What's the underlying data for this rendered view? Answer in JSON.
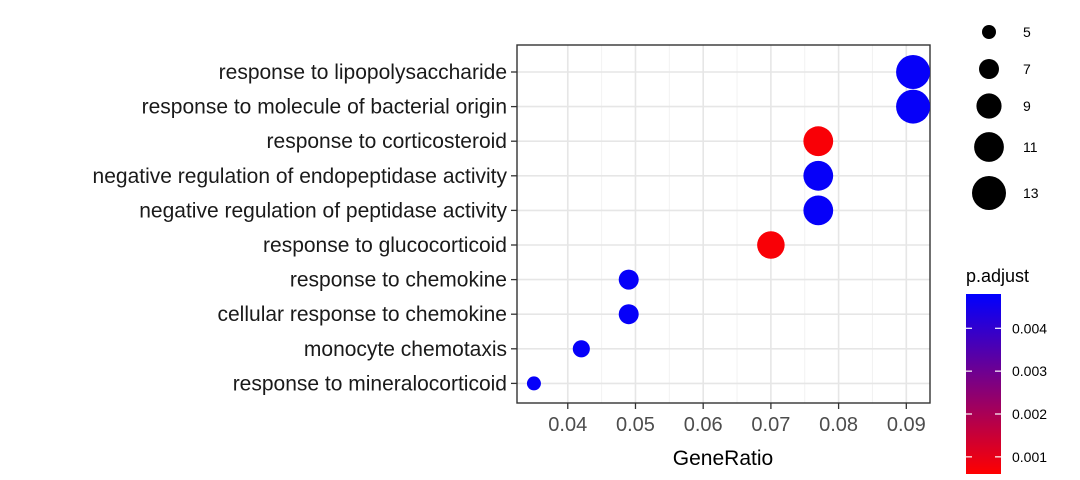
{
  "chart_data": {
    "type": "scatter",
    "xlabel": "GeneRatio",
    "xlim": [
      0.0325,
      0.0935
    ],
    "xticks": [
      0.04,
      0.05,
      0.06,
      0.07,
      0.08,
      0.09
    ],
    "xtick_labels": [
      "0.04",
      "0.05",
      "0.06",
      "0.07",
      "0.08",
      "0.09"
    ],
    "categories": [
      "response to lipopolysaccharide",
      "response to molecule of bacterial origin",
      "response to corticosteroid",
      "negative regulation of endopeptidase activity",
      "negative regulation of peptidase activity",
      "response to glucocorticoid",
      "response to chemokine",
      "cellular response to chemokine",
      "monocyte chemotaxis",
      "response to mineralocorticoid"
    ],
    "points": [
      {
        "category": "response to lipopolysaccharide",
        "gene_ratio": 0.091,
        "count": 13,
        "p_adjust": 0.0047
      },
      {
        "category": "response to molecule of bacterial origin",
        "gene_ratio": 0.091,
        "count": 13,
        "p_adjust": 0.0047
      },
      {
        "category": "response to corticosteroid",
        "gene_ratio": 0.077,
        "count": 11,
        "p_adjust": 0.0007
      },
      {
        "category": "negative regulation of endopeptidase activity",
        "gene_ratio": 0.077,
        "count": 11,
        "p_adjust": 0.0047
      },
      {
        "category": "negative regulation of peptidase activity",
        "gene_ratio": 0.077,
        "count": 11,
        "p_adjust": 0.0047
      },
      {
        "category": "response to glucocorticoid",
        "gene_ratio": 0.07,
        "count": 10,
        "p_adjust": 0.0007
      },
      {
        "category": "response to chemokine",
        "gene_ratio": 0.049,
        "count": 7,
        "p_adjust": 0.0047
      },
      {
        "category": "cellular response to chemokine",
        "gene_ratio": 0.049,
        "count": 7,
        "p_adjust": 0.0047
      },
      {
        "category": "monocyte chemotaxis",
        "gene_ratio": 0.042,
        "count": 6,
        "p_adjust": 0.0047
      },
      {
        "category": "response to mineralocorticoid",
        "gene_ratio": 0.035,
        "count": 5,
        "p_adjust": 0.0047
      }
    ],
    "size_legend": {
      "title": "",
      "values": [
        5,
        7,
        9,
        11,
        13
      ],
      "labels": [
        "5",
        "7",
        "9",
        "11",
        "13"
      ]
    },
    "color_legend": {
      "title": "p.adjust",
      "range": [
        0.0006,
        0.0048
      ],
      "ticks": [
        0.001,
        0.002,
        0.003,
        0.004
      ],
      "tick_labels": [
        "0.001",
        "0.002",
        "0.003",
        "0.004"
      ],
      "low_color": "#ff0000",
      "high_color": "#0000ff"
    },
    "grid": true,
    "legend_position": "right"
  }
}
